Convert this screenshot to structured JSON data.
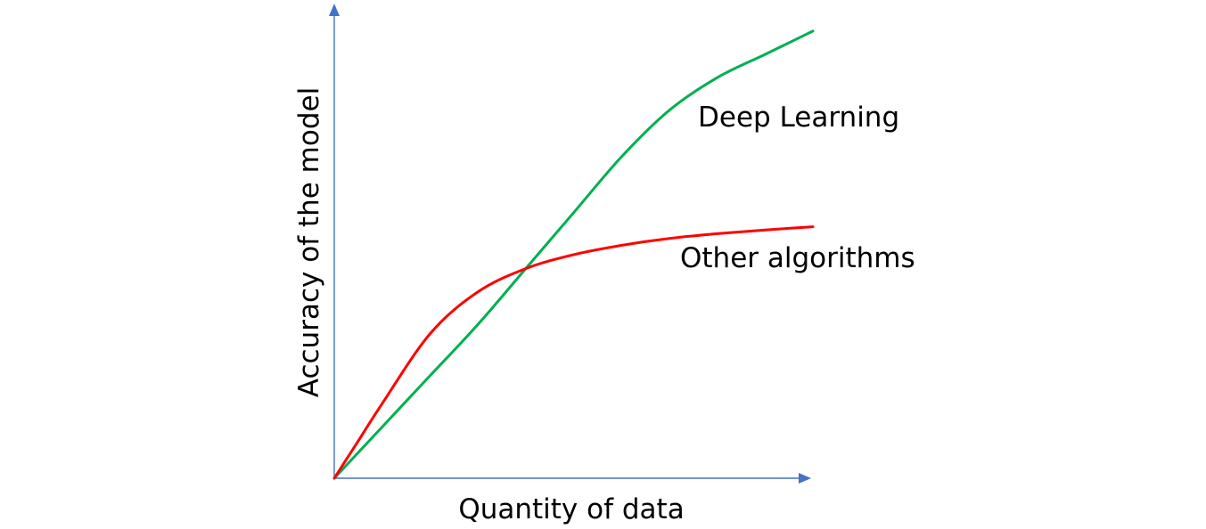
{
  "chart_data": {
    "type": "line",
    "title": "",
    "xlabel": "Quantity of data",
    "ylabel": "Accuracy of the model",
    "xlim": [
      0,
      100
    ],
    "ylim": [
      0,
      100
    ],
    "grid": false,
    "legend": "none",
    "axis_color": "#4472C4",
    "series": [
      {
        "name": "Deep Learning",
        "color": "#00B050",
        "x": [
          0,
          10,
          20,
          30,
          40,
          50,
          60,
          70,
          80,
          90,
          100
        ],
        "y": [
          0,
          11,
          22,
          33,
          45,
          57,
          69,
          79,
          86,
          91,
          96
        ]
      },
      {
        "name": "Other algorithms",
        "color": "#FF0000",
        "x": [
          0,
          5,
          10,
          20,
          30,
          40,
          50,
          60,
          70,
          80,
          90,
          100
        ],
        "y": [
          0,
          8,
          16,
          31,
          40,
          45,
          48,
          50,
          51.5,
          52.5,
          53.3,
          54
        ]
      }
    ]
  }
}
